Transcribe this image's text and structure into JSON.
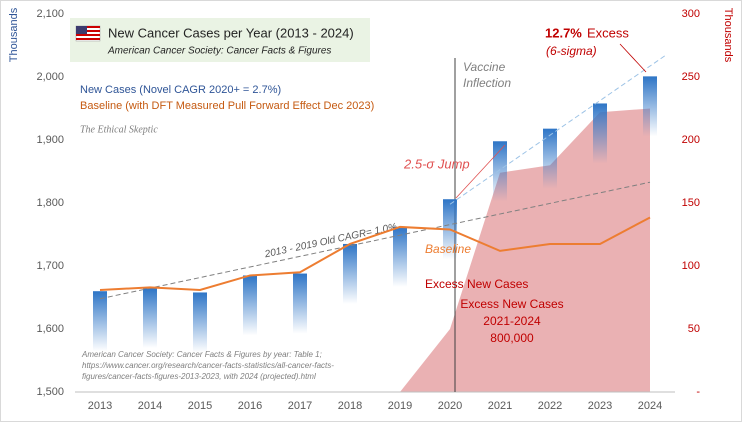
{
  "chart_data": {
    "type": "bar",
    "title": "New Cancer Cases per Year (2013 - 2024)",
    "subtitle": "American Cancer Society: Cancer Facts & Figures",
    "y_label": "Thousands",
    "y2_label": "Thousands",
    "categories": [
      "2013",
      "2014",
      "2015",
      "2016",
      "2017",
      "2018",
      "2019",
      "2020",
      "2021",
      "2022",
      "2023",
      "2024"
    ],
    "series": [
      {
        "name": "New Cases (Novel CAGR 2020+ = 2.7%)",
        "type": "bar",
        "color": "#5b9bd5",
        "values": [
          1660,
          1665,
          1658,
          1685,
          1688,
          1735,
          1762,
          1806,
          1898,
          1918,
          1958,
          2001
        ]
      },
      {
        "name": "Baseline (with DFT Measured Pull Forward Effect Dec 2023)",
        "type": "line",
        "color": "#ed7d31",
        "values": [
          1662,
          1666,
          1662,
          1685,
          1690,
          1735,
          1762,
          1758,
          1724,
          1735,
          1735,
          1777
        ]
      },
      {
        "name": "Excess New Cases",
        "type": "area",
        "axis": "y2",
        "color": "#e6a3a6",
        "values": [
          null,
          null,
          null,
          null,
          null,
          null,
          0,
          50,
          174,
          180,
          222,
          225
        ]
      }
    ],
    "trendlines": [
      {
        "label": "2013 - 2019 Old CAGR= 1.0%",
        "x": [
          "2013",
          "2024"
        ],
        "values": [
          1648,
          1833
        ]
      },
      {
        "x": [
          "2020",
          "2024"
        ],
        "values": [
          1798,
          2010
        ]
      }
    ],
    "ylim": [
      1500,
      2100
    ],
    "yticks": [
      {
        "value": 1500,
        "label": "1,500"
      },
      {
        "value": 1600,
        "label": "1,600"
      },
      {
        "value": 1700,
        "label": "1,700"
      },
      {
        "value": 1800,
        "label": "1,800"
      },
      {
        "value": 1900,
        "label": "1,900"
      },
      {
        "value": 2000,
        "label": "2,000"
      },
      {
        "value": 2100,
        "label": "2,100"
      }
    ],
    "y2lim": [
      0,
      300
    ],
    "y2ticks": [
      {
        "value": 0,
        "label": "-"
      },
      50,
      100,
      150,
      200,
      250,
      300
    ],
    "vertical_line": {
      "x": "2020",
      "label": [
        "Vaccine",
        "Inflection"
      ]
    },
    "annotations": {
      "jump": "2.5-σ Jump",
      "excess_pct": "12.7%",
      "excess_word": "Excess",
      "sigma": "(6-sigma)",
      "baseline": "Baseline",
      "excess_title": "Excess New Cases",
      "excess_years": "2021-2024",
      "excess_total": "800,000",
      "brand": "The Ethical Skeptic"
    },
    "source": [
      "American Cancer Society: Cancer Facts & Figures by year: Table 1;",
      "https://www.cancer.org/research/cancer-facts-statistics/all-cancer-facts-",
      "figures/cancer-facts-figures-2013-2023, with 2024 (projected).html"
    ]
  }
}
